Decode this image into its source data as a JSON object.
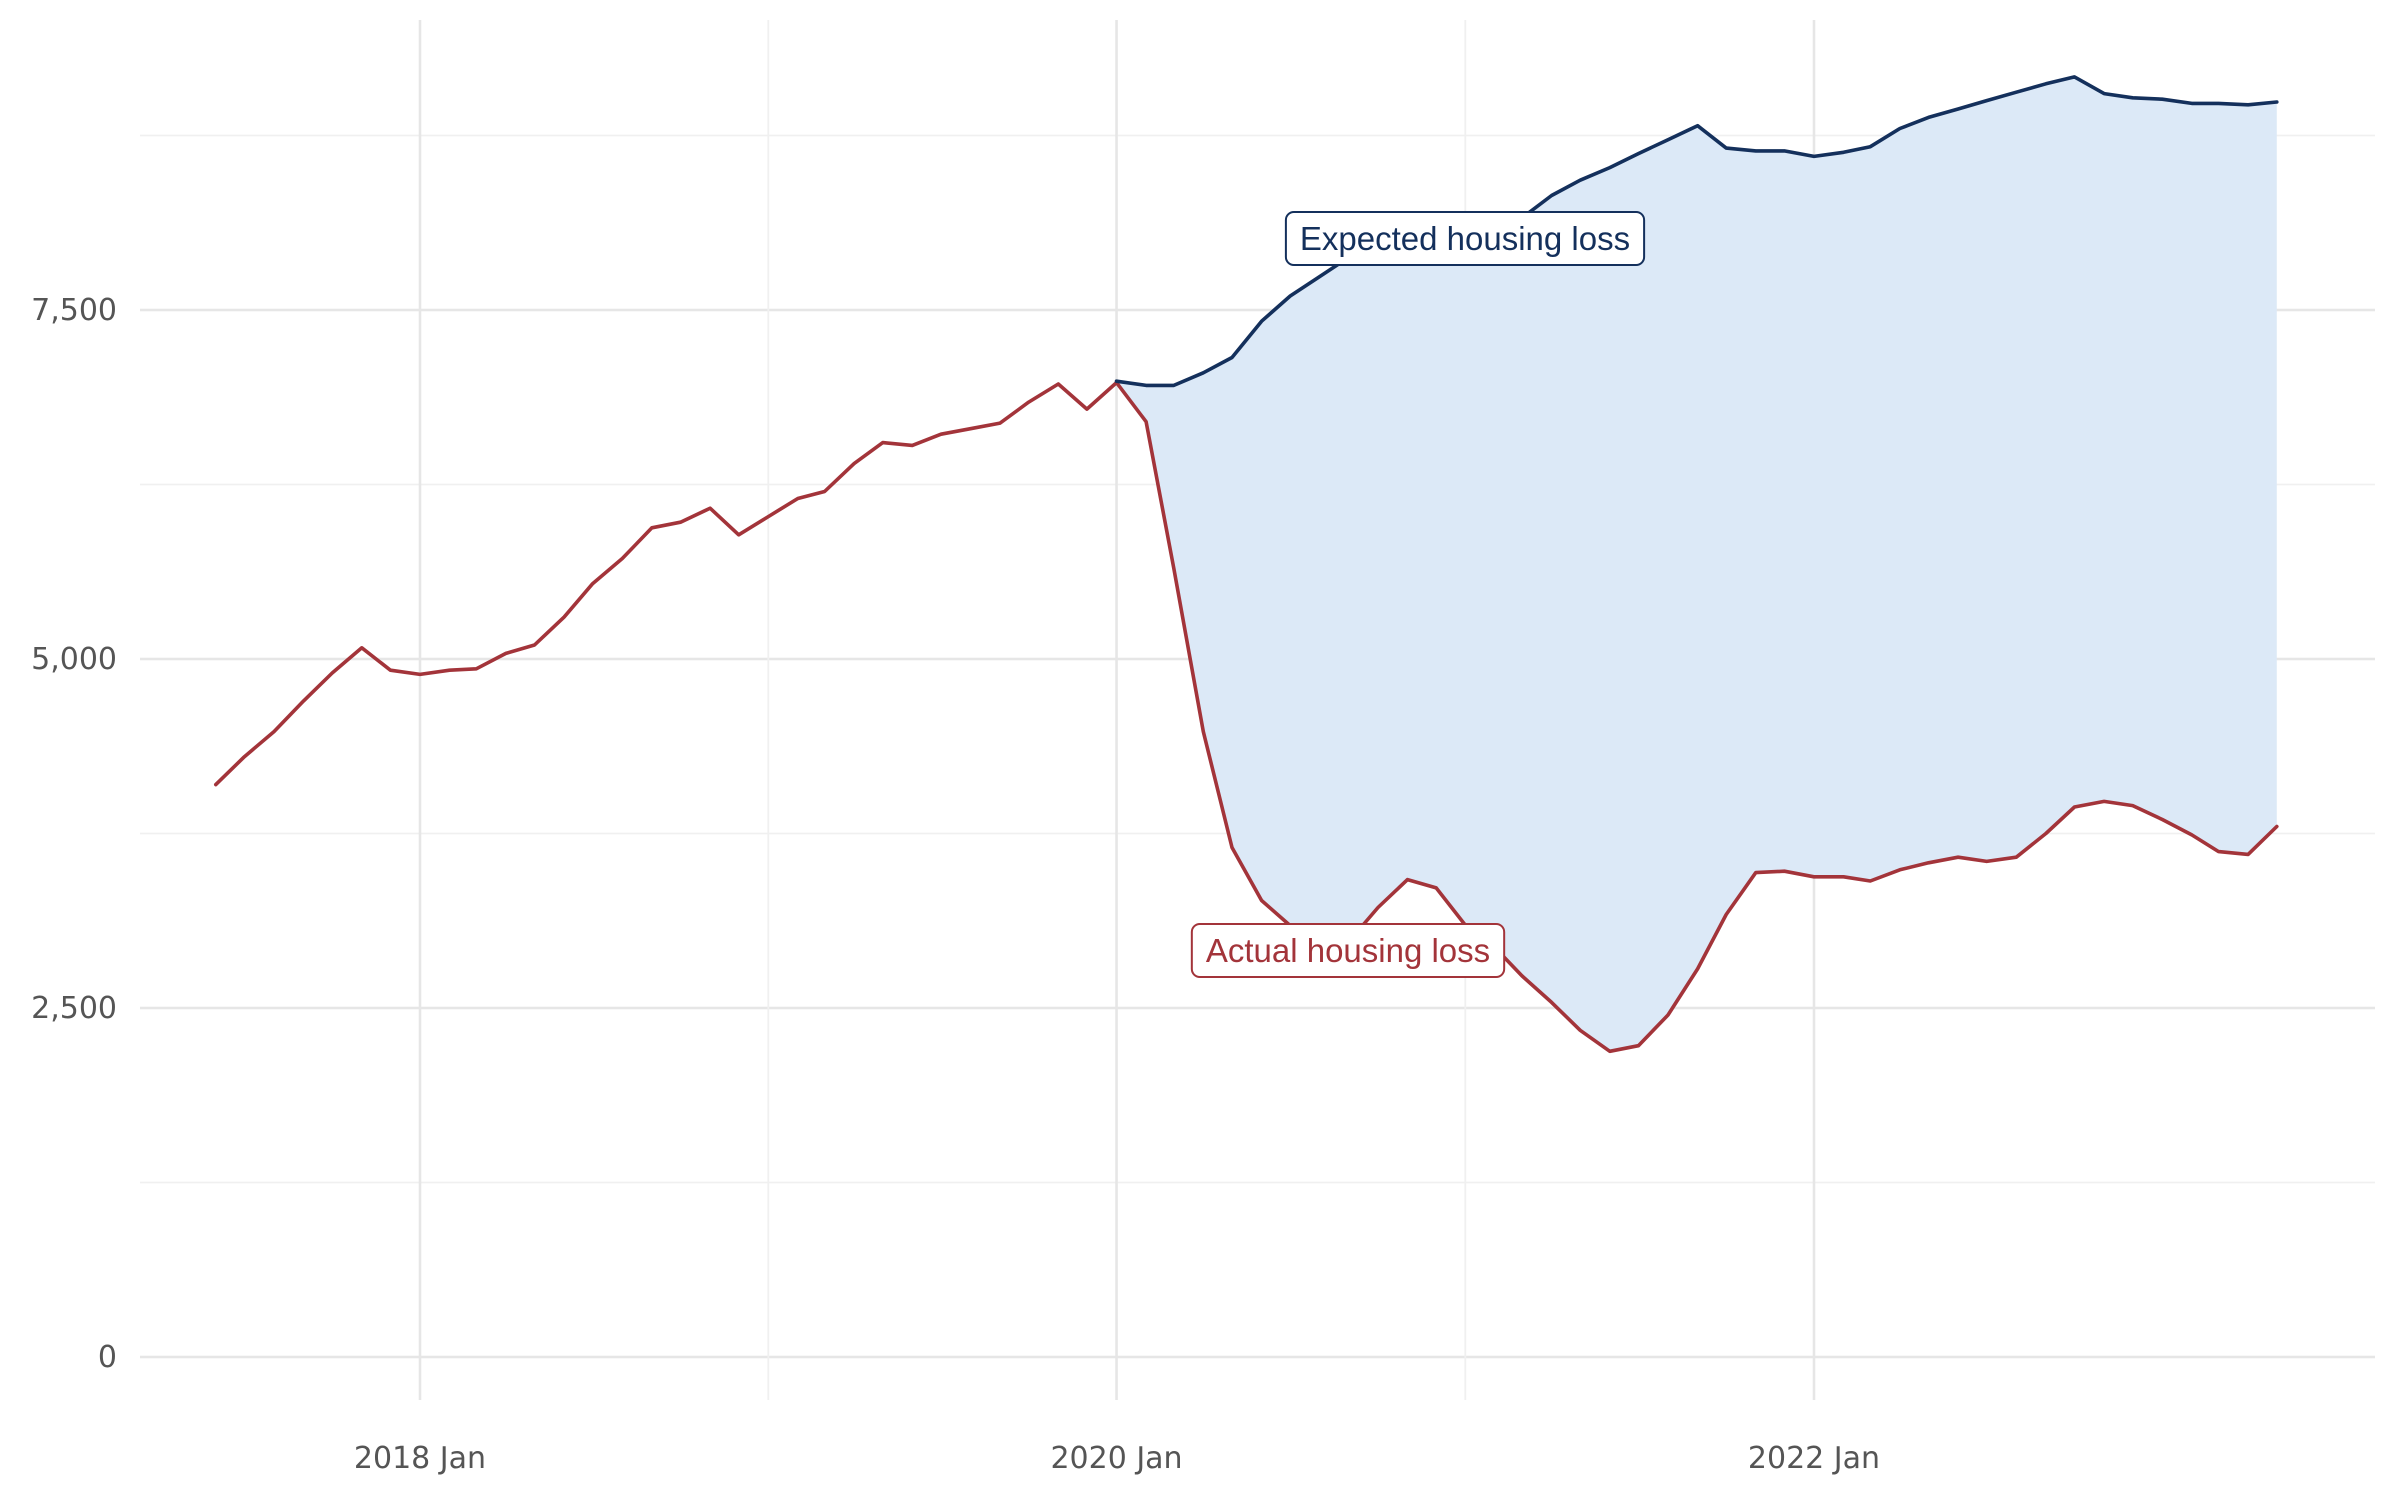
{
  "chart_data": {
    "type": "line",
    "title": "",
    "xlabel": "",
    "ylabel": "",
    "ylim": [
      0,
      9800
    ],
    "yticks": [
      0,
      2500,
      5000,
      7500
    ],
    "y_tick_labels": [
      "0",
      "2,500",
      "5,000",
      "7,500"
    ],
    "x_ticks": [
      {
        "date": "2018-01-01",
        "label": "2018 Jan"
      },
      {
        "date": "2020-01-01",
        "label": "2020 Jan"
      },
      {
        "date": "2022-01-01",
        "label": "2022 Jan"
      }
    ],
    "grid": true,
    "legend": "none",
    "colors": {
      "actual": "#a3343a",
      "expected": "#14305c",
      "gap_fill": "#dce9f7"
    },
    "series": [
      {
        "key": "actual",
        "dates": [
          "2017-06",
          "2017-07",
          "2017-08",
          "2017-09",
          "2017-10",
          "2017-11",
          "2017-12",
          "2018-01",
          "2018-02",
          "2018-03",
          "2018-04",
          "2018-05",
          "2018-06",
          "2018-07",
          "2018-08",
          "2018-09",
          "2018-10",
          "2018-11",
          "2018-12",
          "2019-01",
          "2019-02",
          "2019-03",
          "2019-04",
          "2019-05",
          "2019-06",
          "2019-07",
          "2019-08",
          "2019-09",
          "2019-10",
          "2019-11",
          "2019-12",
          "2020-01",
          "2020-02",
          "2020-03",
          "2020-04",
          "2020-05",
          "2020-06",
          "2020-07",
          "2020-08",
          "2020-09",
          "2020-10",
          "2020-11",
          "2020-12",
          "2021-01",
          "2021-02",
          "2021-03",
          "2021-04",
          "2021-05",
          "2021-06",
          "2021-07",
          "2021-08",
          "2021-09",
          "2021-10",
          "2021-11",
          "2021-12",
          "2022-01",
          "2022-02",
          "2022-03",
          "2022-04",
          "2022-05",
          "2022-06",
          "2022-07",
          "2022-08",
          "2022-09",
          "2022-10",
          "2022-11",
          "2022-12",
          "2023-01",
          "2023-02",
          "2023-03",
          "2023-04",
          "2023-05"
        ],
        "values": [
          4100,
          4300,
          4480,
          4700,
          4900,
          5080,
          4920,
          4890,
          4920,
          4930,
          5040,
          5100,
          5300,
          5540,
          5720,
          5940,
          5980,
          6080,
          5890,
          6020,
          6150,
          6200,
          6400,
          6550,
          6530,
          6610,
          6650,
          6690,
          6840,
          6970,
          6790,
          6980,
          6700,
          5650,
          4480,
          3650,
          3270,
          3090,
          2980,
          2980,
          3220,
          3420,
          3360,
          3090,
          2930,
          2730,
          2540,
          2340,
          2190,
          2230,
          2450,
          2780,
          3170,
          3470,
          3480,
          3440,
          3440,
          3410,
          3490,
          3540,
          3580,
          3550,
          3580,
          3750,
          3940,
          3980,
          3950,
          3850,
          3740,
          3620,
          3600,
          3800
        ]
      },
      {
        "key": "expected",
        "dates": [
          "2020-01",
          "2020-02",
          "2020-03",
          "2020-04",
          "2020-05",
          "2020-06",
          "2020-07",
          "2020-08",
          "2020-09",
          "2020-10",
          "2020-11",
          "2020-12",
          "2021-01",
          "2021-02",
          "2021-03",
          "2021-04",
          "2021-05",
          "2021-06",
          "2021-07",
          "2021-08",
          "2021-09",
          "2021-10",
          "2021-11",
          "2021-12",
          "2022-01",
          "2022-02",
          "2022-03",
          "2022-04",
          "2022-05",
          "2022-06",
          "2022-07",
          "2022-08",
          "2022-09",
          "2022-10",
          "2022-11",
          "2022-12",
          "2023-01",
          "2023-02",
          "2023-03",
          "2023-04",
          "2023-05"
        ],
        "values": [
          6990,
          6960,
          6960,
          7050,
          7160,
          7420,
          7600,
          7740,
          7880,
          8000,
          8160,
          8090,
          8080,
          8120,
          8160,
          8320,
          8430,
          8520,
          8620,
          8720,
          8820,
          8660,
          8640,
          8640,
          8600,
          8630,
          8670,
          8800,
          8880,
          8940,
          9000,
          9060,
          9120,
          9170,
          9050,
          9020,
          9010,
          8980,
          8980,
          8970,
          8990
        ]
      }
    ],
    "annotations": [
      {
        "key": "expected",
        "text": "Expected housing loss"
      },
      {
        "key": "actual",
        "text": "Actual housing loss"
      }
    ]
  }
}
